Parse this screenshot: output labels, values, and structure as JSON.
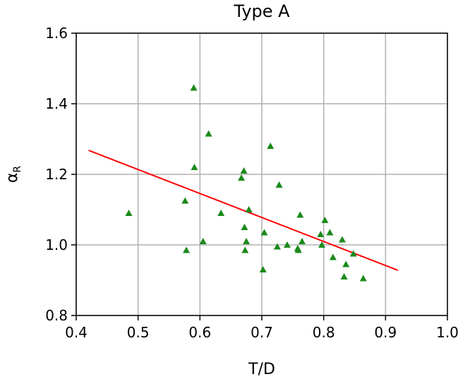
{
  "chart_data": {
    "type": "scatter",
    "title": "Type A",
    "xlabel": "T/D",
    "ylabel_main": "α",
    "ylabel_sub": "R",
    "xlim": [
      0.4,
      1.0
    ],
    "ylim": [
      0.8,
      1.6
    ],
    "x_ticks": [
      0.4,
      0.5,
      0.6,
      0.7,
      0.8,
      0.9,
      1.0
    ],
    "x_tick_labels": [
      "0.4",
      "0.5",
      "0.6",
      "0.7",
      "0.8",
      "0.9",
      "1.0"
    ],
    "y_ticks": [
      0.8,
      1.0,
      1.2,
      1.4,
      1.6
    ],
    "y_tick_labels": [
      "0.8",
      "1.0",
      "1.2",
      "1.4",
      "1.6"
    ],
    "grid": true,
    "marker": "triangle",
    "marker_color": "#1a8a1a",
    "fit_line_color": "#ff0000",
    "points": [
      {
        "x": 0.485,
        "y": 1.09
      },
      {
        "x": 0.576,
        "y": 1.125
      },
      {
        "x": 0.578,
        "y": 0.985
      },
      {
        "x": 0.59,
        "y": 1.445
      },
      {
        "x": 0.591,
        "y": 1.22
      },
      {
        "x": 0.605,
        "y": 1.01
      },
      {
        "x": 0.614,
        "y": 1.315
      },
      {
        "x": 0.634,
        "y": 1.09
      },
      {
        "x": 0.667,
        "y": 1.19
      },
      {
        "x": 0.671,
        "y": 1.21
      },
      {
        "x": 0.672,
        "y": 1.05
      },
      {
        "x": 0.673,
        "y": 0.985
      },
      {
        "x": 0.675,
        "y": 1.01
      },
      {
        "x": 0.679,
        "y": 1.1
      },
      {
        "x": 0.702,
        "y": 0.93
      },
      {
        "x": 0.704,
        "y": 1.035
      },
      {
        "x": 0.714,
        "y": 1.28
      },
      {
        "x": 0.725,
        "y": 0.995
      },
      {
        "x": 0.728,
        "y": 1.17
      },
      {
        "x": 0.741,
        "y": 1.0
      },
      {
        "x": 0.758,
        "y": 0.99
      },
      {
        "x": 0.759,
        "y": 0.985
      },
      {
        "x": 0.762,
        "y": 1.085
      },
      {
        "x": 0.765,
        "y": 1.01
      },
      {
        "x": 0.795,
        "y": 1.03
      },
      {
        "x": 0.797,
        "y": 1.0
      },
      {
        "x": 0.802,
        "y": 1.07
      },
      {
        "x": 0.81,
        "y": 1.035
      },
      {
        "x": 0.815,
        "y": 0.965
      },
      {
        "x": 0.83,
        "y": 1.015
      },
      {
        "x": 0.833,
        "y": 0.91
      },
      {
        "x": 0.836,
        "y": 0.945
      },
      {
        "x": 0.848,
        "y": 0.975
      },
      {
        "x": 0.864,
        "y": 0.905
      }
    ],
    "fit_line": {
      "x": [
        0.42,
        0.92
      ],
      "y": [
        1.268,
        0.928
      ]
    }
  }
}
